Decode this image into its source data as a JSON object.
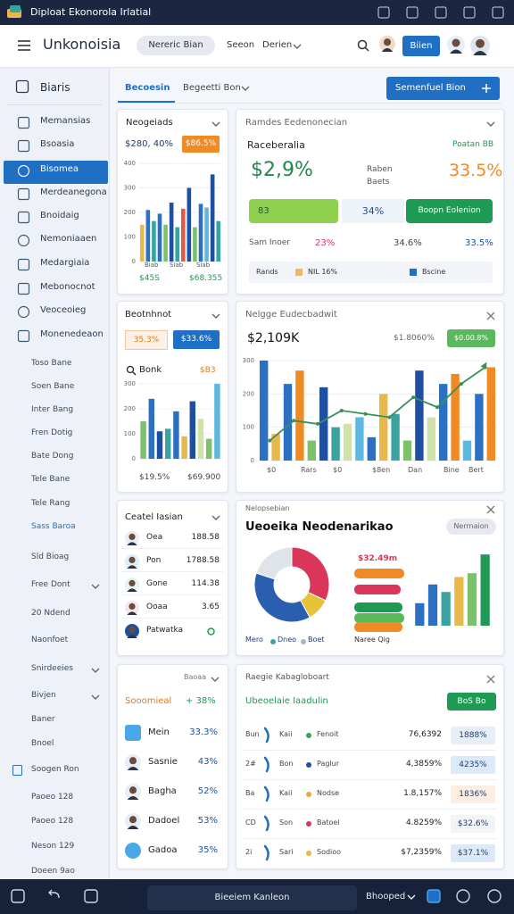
{
  "window": {
    "title": "Diploat Ekonorola Irlatial"
  },
  "header": {
    "app_name": "Unkonoisia",
    "pill": "Nereric Bian",
    "link": "Seeon",
    "dropdown": "Derien",
    "button": "Biien"
  },
  "sidebar": {
    "title": "Biaris",
    "nav": [
      "Memansias",
      "Bsoasia",
      "Bisomea",
      "Merdeanegona",
      "Bnoidaig",
      "Nemoniaaen",
      "Medargiaia",
      "Mebonocnot",
      "Veoceoieg",
      "Monenedeaon"
    ],
    "links": [
      "Toso Bane",
      "Soen Bane",
      "Inter Bang",
      "Fren Dotig",
      "Bate Dong",
      "Tele Bane",
      "Tele Rang",
      "Sass Baroa",
      "Sld Bioag",
      "Free Dont",
      "20 Ndend",
      "Naonfoet",
      "Snirdeeies",
      "Bivjen",
      "Baner",
      "Bnoel",
      "Soogen Ron",
      "Paoeo 128",
      "Paoeo 128",
      "Neson 129",
      "Doeen 9ao"
    ]
  },
  "tabs": {
    "items": [
      "Becoesin",
      "Begeetti Bon"
    ],
    "button": "Semenfuel Bion"
  },
  "cards": {
    "revenue": {
      "title": "Neogeiads",
      "value": "$280, 40%",
      "badge": "$86.5%",
      "chart": {
        "type": "bar",
        "ylim": [
          0,
          400
        ],
        "yticks": [
          0,
          100,
          200,
          300,
          400
        ],
        "values": [
          150,
          210,
          165,
          195,
          150,
          240,
          140,
          215,
          300,
          140,
          235,
          220,
          355,
          165
        ],
        "colors": [
          "#e8b84a",
          "#2d6fc0",
          "#3aa3a0",
          "#2d6fc0",
          "#7cc26b",
          "#1f4fa0",
          "#3aa3a0",
          "#e05a4a",
          "#1f4fa0",
          "#7cc26b",
          "#2d6fc0",
          "#5cb8e0",
          "#1f4fa0",
          "#3aa3a0"
        ]
      },
      "x_labels": [
        "Biab",
        "Siab",
        "Siab"
      ],
      "footer": [
        "$45S",
        "$68.355"
      ]
    },
    "summary": {
      "title": "Ramdes Eedenonecian",
      "subtitle": "Raceberalia",
      "status": "Poatan BB",
      "main": "$2,9%",
      "note": "Raben Baets",
      "secondary": "33.5%",
      "progress": {
        "label": "83",
        "value": "34%",
        "button": "Boopn Eolenion"
      },
      "stats": [
        "Sam Inoer",
        "23%",
        "34.6%",
        "33.5%"
      ],
      "legend": [
        "Rands",
        "NIL 16%",
        "Bscine"
      ]
    },
    "sales": {
      "title": "Beotnhnot",
      "badge": "35.3%",
      "button": "$33.6%",
      "search": "Bonk",
      "search_value": "$B3",
      "chart": {
        "type": "bar",
        "ylim": [
          0,
          300
        ],
        "yticks": [
          0,
          100,
          200,
          300
        ],
        "values": [
          150,
          240,
          110,
          120,
          190,
          90,
          230,
          160,
          80,
          300
        ],
        "colors": [
          "#7cc26b",
          "#2d6fc0",
          "#1f4fa0",
          "#3aa3a0",
          "#2d6fc0",
          "#e8b84a",
          "#1f4fa0",
          "#cfe3a8",
          "#7cc26b",
          "#5cb8e0"
        ]
      },
      "footer": [
        "$19.5%",
        "$69.900"
      ]
    },
    "trend": {
      "title": "Nelgge Eudecbadwit",
      "value": "$2,109K",
      "change": "$1.8060%",
      "badge": "$0.00.8%",
      "chart": {
        "type": "bar",
        "ylim": [
          0,
          300
        ],
        "yticks": [
          0,
          100,
          200,
          300
        ],
        "values": [
          300,
          80,
          230,
          270,
          60,
          220,
          100,
          110,
          130,
          70,
          200,
          140,
          60,
          270,
          130,
          230,
          260,
          60,
          200,
          280
        ],
        "colors": [
          "#2d6fc0",
          "#e8b84a",
          "#2d6fc0",
          "#f08a24",
          "#7cc26b",
          "#1f4fa0",
          "#3aa3a0",
          "#cfe3a8",
          "#5cb8e0",
          "#2d6fc0",
          "#e8b84a",
          "#3aa3a0",
          "#7cc26b",
          "#1f4fa0",
          "#cfe3a8",
          "#2d6fc0",
          "#f08a24",
          "#5cb8e0",
          "#2d6fc0",
          "#f08a24"
        ],
        "line": [
          60,
          120,
          110,
          150,
          140,
          130,
          190,
          160,
          230,
          280
        ],
        "line_color": "#3a8f5a"
      },
      "x_labels": [
        "$0",
        "Rars",
        "$0",
        "$8en",
        "Dan",
        "Bine",
        "Bert"
      ]
    },
    "accounts": {
      "title": "Ceatel Iasian",
      "rows": [
        [
          "Oea",
          "188.58"
        ],
        [
          "Pon",
          "1788.58"
        ],
        [
          "Gone",
          "114.38"
        ],
        [
          "Ooaa",
          "3.65"
        ],
        [
          "Patwatka"
        ]
      ]
    },
    "breakdown": {
      "label": "Nelopsebian",
      "title": "Ueoeika Neodenarikao",
      "pill": "Nerrnaion",
      "donut": {
        "type": "pie",
        "values": [
          32,
          10,
          38,
          20
        ],
        "colors": [
          "#d9365a",
          "#e5c43a",
          "#2a5fb0",
          "#dfe4ea"
        ]
      },
      "legend": [
        "Mero",
        "Dneo",
        "Boet"
      ],
      "amount": "$32.49m",
      "caption": "Naree Qig",
      "chart": {
        "type": "bar",
        "ylim": [
          0,
          100
        ],
        "values": [
          30,
          55,
          45,
          65,
          70,
          95
        ],
        "colors": [
          "#2d6fc0",
          "#2d6fc0",
          "#3aa3a0",
          "#e8b84a",
          "#7cc26b",
          "#1e9a55"
        ]
      }
    },
    "team": {
      "label": "Baoaa",
      "title": "Sooomieal",
      "change": "+ 38%",
      "rows": [
        [
          "Mein",
          "33.3%"
        ],
        [
          "Sasnie",
          "43%"
        ],
        [
          "Bagha",
          "52%"
        ],
        [
          "Dadoel",
          "53%"
        ],
        [
          "Gadoa",
          "35%"
        ]
      ]
    },
    "transactions": {
      "label": "Raegie Kabagloboart",
      "title": "Ubeoelaie Iaadulin",
      "button": "BoS Bo",
      "rows": [
        [
          "Bun",
          "Kaii",
          "Fenoit",
          "76,6392",
          "1888%"
        ],
        [
          "2#",
          "Bon",
          "Paglur",
          "4,3859%",
          "4235%"
        ],
        [
          "Ba",
          "Kaii",
          "Nodse",
          "1.8,157%",
          "1836%"
        ],
        [
          "CD",
          "Son",
          "Batoel",
          "4.8259%",
          "$32.6%"
        ],
        [
          "2i",
          "Sari",
          "Sodioo",
          "$7,2359%",
          "$37.1%"
        ]
      ]
    }
  },
  "footer": {
    "center": "Bieeiem Kanleon",
    "menu": "Bhooped"
  }
}
